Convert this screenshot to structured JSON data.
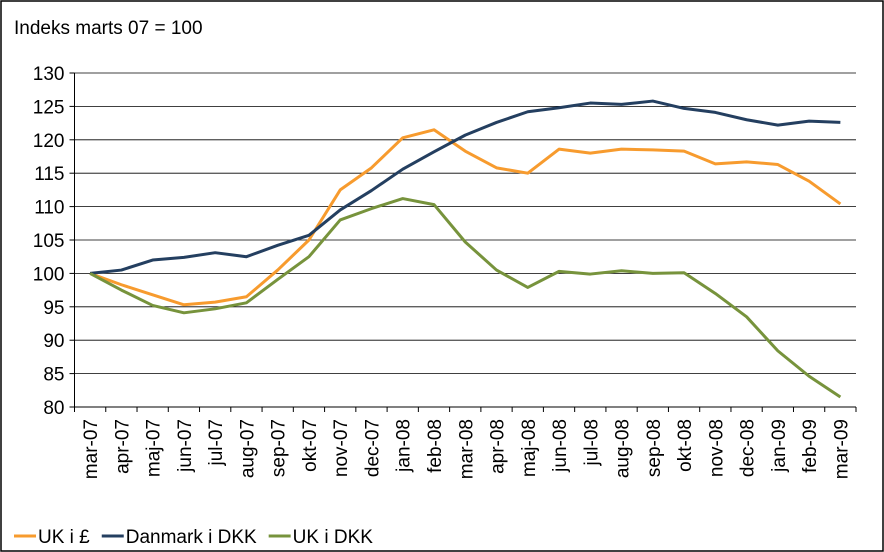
{
  "chart_data": {
    "type": "line",
    "y_label": "Indeks marts 07 = 100",
    "categories": [
      "mar-07",
      "apr-07",
      "maj-07",
      "jun-07",
      "jul-07",
      "aug-07",
      "sep-07",
      "okt-07",
      "nov-07",
      "dec-07",
      "jan-08",
      "feb-08",
      "mar-08",
      "apr-08",
      "maj-08",
      "jun-08",
      "jul-08",
      "aug-08",
      "sep-08",
      "okt-08",
      "nov-08",
      "dec-08",
      "jan-09",
      "feb-09",
      "mar-09"
    ],
    "series": [
      {
        "name": "UK i £",
        "color": "#f79b2e",
        "values": [
          100,
          98.3,
          96.8,
          95.3,
          95.7,
          96.5,
          100.5,
          105,
          112.5,
          115.8,
          120.3,
          121.5,
          118.3,
          115.8,
          115,
          118.6,
          118,
          118.6,
          118.5,
          118.3,
          116.4,
          116.7,
          116.3,
          113.8,
          110.4
        ]
      },
      {
        "name": "Danmark i DKK",
        "color": "#243f60",
        "values": [
          100,
          100.5,
          102,
          102.4,
          103.1,
          102.5,
          104.2,
          105.7,
          109.5,
          112.4,
          115.6,
          118.2,
          120.7,
          122.6,
          124.2,
          124.8,
          125.5,
          125.3,
          125.8,
          124.7,
          124.1,
          123,
          122.2,
          122.8,
          122.6
        ]
      },
      {
        "name": "UK i DKK",
        "color": "#77933c",
        "values": [
          100,
          97.5,
          95.2,
          94.1,
          94.7,
          95.6,
          99.1,
          102.5,
          108,
          109.7,
          111.2,
          110.3,
          104.7,
          100.5,
          97.9,
          100.3,
          99.9,
          100.4,
          100,
          100.1,
          97,
          93.5,
          88.4,
          84.6,
          81.5
        ]
      }
    ],
    "ylim": [
      80,
      130
    ],
    "yticks": [
      80,
      85,
      90,
      95,
      100,
      105,
      110,
      115,
      120,
      125,
      130
    ],
    "grid": true,
    "legend": "bottom"
  }
}
